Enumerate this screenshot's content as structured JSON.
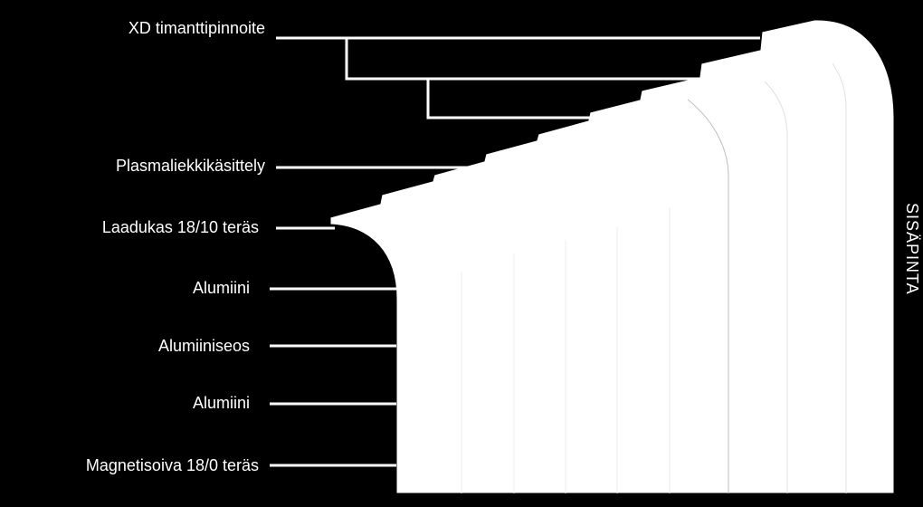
{
  "diagram": {
    "side_label": "SISÄPINTA",
    "layers": [
      "XD timanttipinnoite",
      "Plasmaliekkikäsittely",
      "Laadukas 18/10 teräs",
      "Alumiini",
      "Alumiiniseos",
      "Alumiini",
      "Magnetisoiva 18/0 teräs"
    ],
    "colors": {
      "background": "#000000",
      "foreground": "#ffffff"
    }
  }
}
